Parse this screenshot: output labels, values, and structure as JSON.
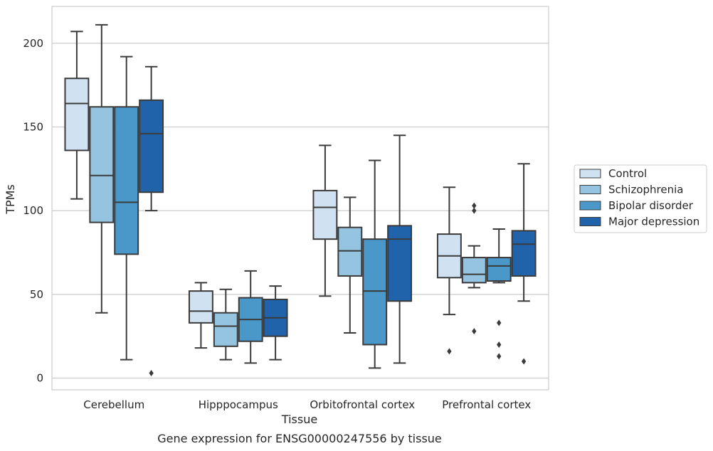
{
  "chart_data": {
    "type": "box",
    "title": "",
    "caption": "Gene expression for ENSG00000247556 by tissue",
    "xlabel": "Tissue",
    "ylabel": "TPMs",
    "ylim": [
      -7,
      222
    ],
    "yticks": [
      0,
      50,
      100,
      150,
      200
    ],
    "categories": [
      "Cerebellum",
      "Hipppocampus",
      "Orbitofrontal cortex",
      "Prefrontal cortex"
    ],
    "legend_position": "right",
    "grid": "horizontal",
    "series": [
      {
        "name": "Control",
        "color": "#d0e1f2",
        "boxes": [
          {
            "whislo": 107,
            "q1": 136,
            "med": 164,
            "q3": 179,
            "whishi": 207,
            "fliers": []
          },
          {
            "whislo": 18,
            "q1": 33,
            "med": 40,
            "q3": 52,
            "whishi": 57,
            "fliers": []
          },
          {
            "whislo": 49,
            "q1": 83,
            "med": 102,
            "q3": 112,
            "whishi": 139,
            "fliers": []
          },
          {
            "whislo": 38,
            "q1": 60,
            "med": 73,
            "q3": 86,
            "whishi": 114,
            "fliers": [
              16
            ]
          }
        ]
      },
      {
        "name": "Schizophrenia",
        "color": "#94c4df",
        "boxes": [
          {
            "whislo": 39,
            "q1": 93,
            "med": 121,
            "q3": 162,
            "whishi": 211,
            "fliers": []
          },
          {
            "whislo": 11,
            "q1": 19,
            "med": 31,
            "q3": 39,
            "whishi": 53,
            "fliers": []
          },
          {
            "whislo": 27,
            "q1": 61,
            "med": 76,
            "q3": 90,
            "whishi": 108,
            "fliers": []
          },
          {
            "whislo": 54,
            "q1": 57,
            "med": 62,
            "q3": 72,
            "whishi": 79,
            "fliers": [
              28,
              100,
              103
            ]
          }
        ]
      },
      {
        "name": "Bipolar disorder",
        "color": "#4a98c9",
        "boxes": [
          {
            "whislo": 11,
            "q1": 74,
            "med": 105,
            "q3": 162,
            "whishi": 192,
            "fliers": []
          },
          {
            "whislo": 9,
            "q1": 22,
            "med": 35,
            "q3": 48,
            "whishi": 64,
            "fliers": []
          },
          {
            "whislo": 6,
            "q1": 20,
            "med": 52,
            "q3": 83,
            "whishi": 130,
            "fliers": []
          },
          {
            "whislo": 57,
            "q1": 58,
            "med": 67,
            "q3": 72,
            "whishi": 89,
            "fliers": [
              13,
              20,
              33
            ]
          }
        ]
      },
      {
        "name": "Major depression",
        "color": "#2163aa",
        "boxes": [
          {
            "whislo": 100,
            "q1": 111,
            "med": 146,
            "q3": 166,
            "whishi": 186,
            "fliers": [
              3
            ]
          },
          {
            "whislo": 11,
            "q1": 25,
            "med": 36,
            "q3": 47,
            "whishi": 55,
            "fliers": []
          },
          {
            "whislo": 9,
            "q1": 46,
            "med": 83,
            "q3": 91,
            "whishi": 145,
            "fliers": []
          },
          {
            "whislo": 46,
            "q1": 61,
            "med": 80,
            "q3": 88,
            "whishi": 128,
            "fliers": [
              10
            ]
          }
        ]
      }
    ]
  }
}
